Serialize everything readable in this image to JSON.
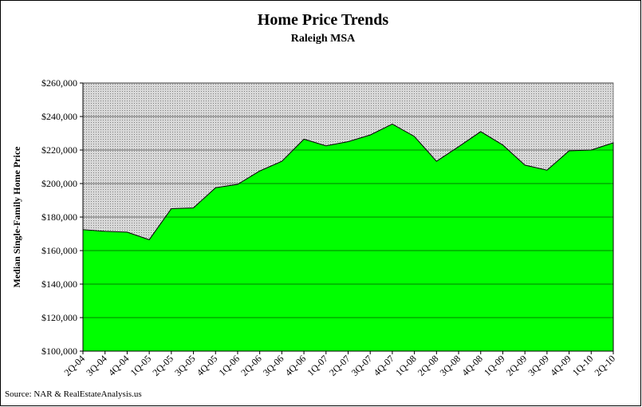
{
  "chart_data": {
    "type": "area",
    "title": "Home Price Trends",
    "subtitle": "Raleigh MSA",
    "y_label": "Median Single-Family Home Price",
    "source": "Source: NAR & RealEstateAnalysis.us",
    "categories": [
      "2Q-04",
      "3Q-04",
      "4Q-04",
      "1Q-05",
      "2Q-05",
      "3Q-05",
      "4Q-05",
      "1Q-06",
      "2Q-06",
      "3Q-06",
      "4Q-06",
      "1Q-07",
      "2Q-07",
      "3Q-07",
      "4Q-07",
      "1Q-08",
      "2Q-08",
      "3Q-08",
      "4Q-08",
      "1Q-09",
      "2Q-09",
      "3Q-09",
      "4Q-09",
      "1Q-10",
      "2Q-10"
    ],
    "values": [
      172500,
      171500,
      171000,
      166500,
      185000,
      185500,
      197500,
      199500,
      207500,
      213300,
      226500,
      222500,
      225000,
      229000,
      235500,
      228100,
      213300,
      222000,
      231000,
      223000,
      211000,
      208000,
      219500,
      220000,
      224300
    ],
    "color": "#00ff00",
    "ylim": [
      100000,
      260000
    ],
    "yticks": [
      {
        "value": 100000,
        "label": "$100,000"
      },
      {
        "value": 120000,
        "label": "$120,000"
      },
      {
        "value": 140000,
        "label": "$140,000"
      },
      {
        "value": 160000,
        "label": "$160,000"
      },
      {
        "value": 180000,
        "label": "$180,000"
      },
      {
        "value": 200000,
        "label": "$200,000"
      },
      {
        "value": 220000,
        "label": "$220,000"
      },
      {
        "value": 240000,
        "label": "$240,000"
      },
      {
        "value": 260000,
        "label": "$260,000"
      }
    ],
    "grid": true
  }
}
